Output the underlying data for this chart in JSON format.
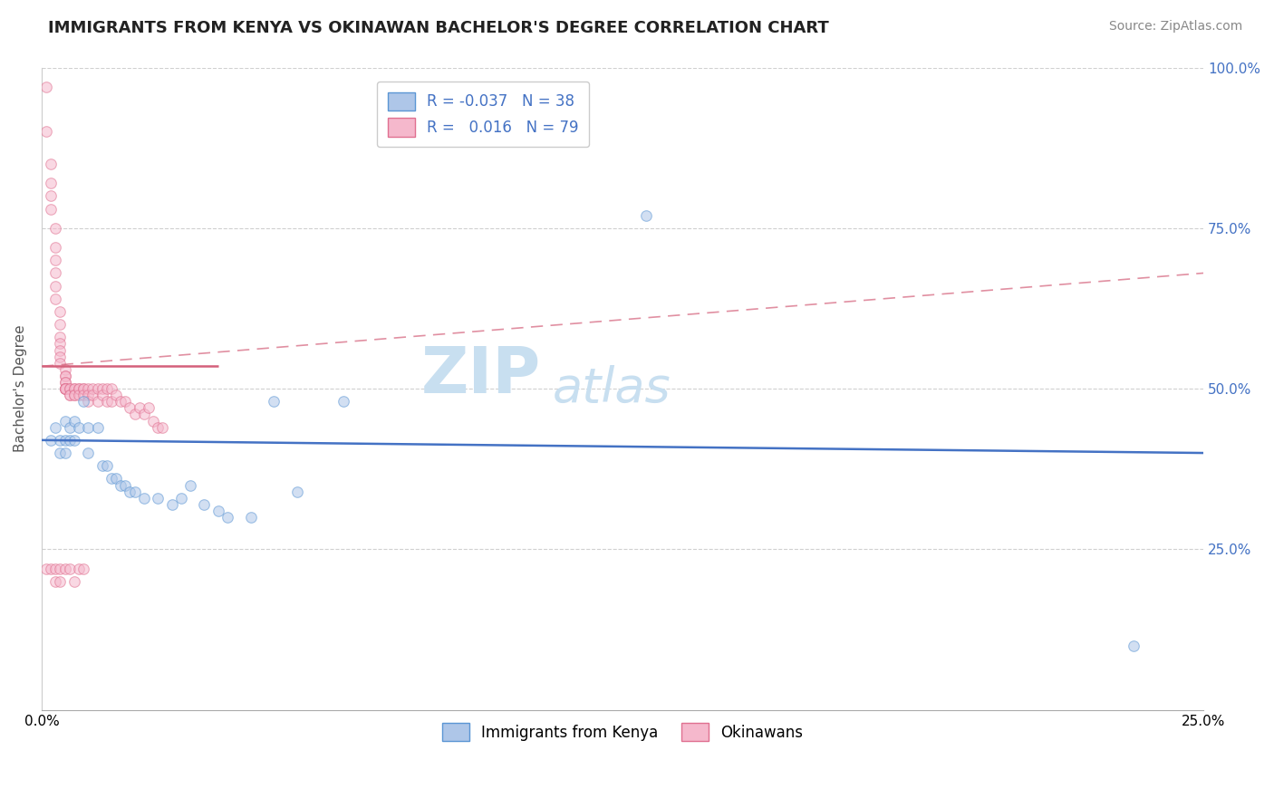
{
  "title": "IMMIGRANTS FROM KENYA VS OKINAWAN BACHELOR'S DEGREE CORRELATION CHART",
  "source": "Source: ZipAtlas.com",
  "ylabel": "Bachelor's Degree",
  "xlim": [
    0.0,
    0.25
  ],
  "ylim": [
    0.0,
    1.0
  ],
  "background_color": "#ffffff",
  "grid_color": "#d0d0d0",
  "blue_scatter_x": [
    0.002,
    0.003,
    0.004,
    0.004,
    0.005,
    0.005,
    0.005,
    0.006,
    0.006,
    0.007,
    0.007,
    0.008,
    0.009,
    0.01,
    0.01,
    0.012,
    0.013,
    0.014,
    0.015,
    0.016,
    0.017,
    0.018,
    0.019,
    0.02,
    0.022,
    0.025,
    0.028,
    0.03,
    0.032,
    0.035,
    0.038,
    0.04,
    0.045,
    0.05,
    0.055,
    0.065,
    0.13,
    0.235
  ],
  "blue_scatter_y": [
    0.42,
    0.44,
    0.4,
    0.42,
    0.45,
    0.42,
    0.4,
    0.44,
    0.42,
    0.45,
    0.42,
    0.44,
    0.48,
    0.44,
    0.4,
    0.44,
    0.38,
    0.38,
    0.36,
    0.36,
    0.35,
    0.35,
    0.34,
    0.34,
    0.33,
    0.33,
    0.32,
    0.33,
    0.35,
    0.32,
    0.31,
    0.3,
    0.3,
    0.48,
    0.34,
    0.48,
    0.77,
    0.1
  ],
  "pink_scatter_x": [
    0.001,
    0.001,
    0.002,
    0.002,
    0.002,
    0.002,
    0.003,
    0.003,
    0.003,
    0.003,
    0.003,
    0.003,
    0.004,
    0.004,
    0.004,
    0.004,
    0.004,
    0.004,
    0.004,
    0.005,
    0.005,
    0.005,
    0.005,
    0.005,
    0.005,
    0.005,
    0.005,
    0.005,
    0.005,
    0.005,
    0.006,
    0.006,
    0.006,
    0.006,
    0.007,
    0.007,
    0.007,
    0.007,
    0.008,
    0.008,
    0.008,
    0.009,
    0.009,
    0.009,
    0.01,
    0.01,
    0.01,
    0.011,
    0.011,
    0.012,
    0.012,
    0.013,
    0.013,
    0.014,
    0.014,
    0.015,
    0.015,
    0.016,
    0.017,
    0.018,
    0.019,
    0.02,
    0.021,
    0.022,
    0.023,
    0.024,
    0.025,
    0.026,
    0.001,
    0.002,
    0.003,
    0.003,
    0.004,
    0.004,
    0.005,
    0.006,
    0.007,
    0.008,
    0.009
  ],
  "pink_scatter_y": [
    0.97,
    0.9,
    0.85,
    0.82,
    0.8,
    0.78,
    0.75,
    0.72,
    0.7,
    0.68,
    0.66,
    0.64,
    0.62,
    0.6,
    0.58,
    0.57,
    0.56,
    0.55,
    0.54,
    0.53,
    0.52,
    0.52,
    0.51,
    0.51,
    0.5,
    0.5,
    0.5,
    0.5,
    0.5,
    0.5,
    0.5,
    0.5,
    0.49,
    0.49,
    0.5,
    0.5,
    0.49,
    0.49,
    0.5,
    0.5,
    0.49,
    0.5,
    0.5,
    0.49,
    0.5,
    0.49,
    0.48,
    0.5,
    0.49,
    0.5,
    0.48,
    0.5,
    0.49,
    0.48,
    0.5,
    0.48,
    0.5,
    0.49,
    0.48,
    0.48,
    0.47,
    0.46,
    0.47,
    0.46,
    0.47,
    0.45,
    0.44,
    0.44,
    0.22,
    0.22,
    0.22,
    0.2,
    0.22,
    0.2,
    0.22,
    0.22,
    0.2,
    0.22,
    0.22
  ],
  "blue_line_x": [
    0.0,
    0.25
  ],
  "blue_line_y": [
    0.42,
    0.4
  ],
  "pink_solid_line_x": [
    0.0,
    0.038
  ],
  "pink_solid_line_y": [
    0.535,
    0.535
  ],
  "pink_dash_line_x": [
    0.0,
    0.25
  ],
  "pink_dash_line_y": [
    0.535,
    0.68
  ],
  "dot_size": 70,
  "dot_alpha": 0.55,
  "blue_dot_color": "#aec6e8",
  "blue_dot_edge": "#5b96d4",
  "pink_dot_color": "#f5b8cc",
  "pink_dot_edge": "#e07090",
  "blue_line_color": "#4472c4",
  "pink_line_color": "#d4607a",
  "title_fontsize": 13,
  "axis_label_fontsize": 11,
  "tick_fontsize": 11,
  "source_fontsize": 10,
  "watermark_zip_color": "#c8dff0",
  "watermark_atlas_color": "#c8dff0",
  "watermark_fontsize": 52
}
